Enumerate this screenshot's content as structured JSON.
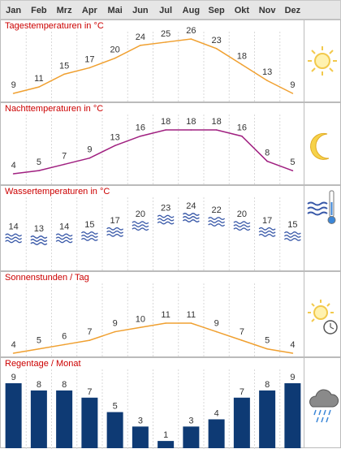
{
  "months": [
    "Jan",
    "Feb",
    "Mrz",
    "Apr",
    "Mai",
    "Jun",
    "Jul",
    "Aug",
    "Sep",
    "Okt",
    "Nov",
    "Dez"
  ],
  "icons": {
    "day": "sun-icon",
    "night": "moon-icon",
    "water": "water-thermometer-icon",
    "sun": "sun-clock-icon",
    "rain": "rain-cloud-icon"
  },
  "colors": {
    "title": "#cc0000",
    "day_line": "#f0a030",
    "night_line": "#a02080",
    "sun_line": "#f0a030",
    "rain_bar": "#0e3a74",
    "water_wave": "#3858a8"
  },
  "chart_data": [
    {
      "id": "day",
      "type": "line",
      "title": "Tagestemperaturen in °C",
      "categories": [
        "Jan",
        "Feb",
        "Mrz",
        "Apr",
        "Mai",
        "Jun",
        "Jul",
        "Aug",
        "Sep",
        "Okt",
        "Nov",
        "Dez"
      ],
      "values": [
        9,
        11,
        15,
        17,
        20,
        24,
        25,
        26,
        23,
        18,
        13,
        9
      ]
    },
    {
      "id": "night",
      "type": "line",
      "title": "Nachttemperaturen in °C",
      "categories": [
        "Jan",
        "Feb",
        "Mrz",
        "Apr",
        "Mai",
        "Jun",
        "Jul",
        "Aug",
        "Sep",
        "Okt",
        "Nov",
        "Dez"
      ],
      "values": [
        4,
        5,
        7,
        9,
        13,
        16,
        18,
        18,
        18,
        16,
        8,
        5
      ]
    },
    {
      "id": "water",
      "type": "table",
      "title": "Wassertemperaturen in °C",
      "categories": [
        "Jan",
        "Feb",
        "Mrz",
        "Apr",
        "Mai",
        "Jun",
        "Jul",
        "Aug",
        "Sep",
        "Okt",
        "Nov",
        "Dez"
      ],
      "values": [
        14,
        13,
        14,
        15,
        17,
        20,
        23,
        24,
        22,
        20,
        17,
        15
      ]
    },
    {
      "id": "sun",
      "type": "line",
      "title": "Sonnenstunden / Tag",
      "categories": [
        "Jan",
        "Feb",
        "Mrz",
        "Apr",
        "Mai",
        "Jun",
        "Jul",
        "Aug",
        "Sep",
        "Okt",
        "Nov",
        "Dez"
      ],
      "values": [
        4,
        5,
        6,
        7,
        9,
        10,
        11,
        11,
        9,
        7,
        5,
        4
      ]
    },
    {
      "id": "rain",
      "type": "bar",
      "title": "Regentage / Monat",
      "categories": [
        "Jan",
        "Feb",
        "Mrz",
        "Apr",
        "Mai",
        "Jun",
        "Jul",
        "Aug",
        "Sep",
        "Okt",
        "Nov",
        "Dez"
      ],
      "values": [
        9,
        8,
        8,
        7,
        5,
        3,
        1,
        3,
        4,
        7,
        8,
        9
      ]
    }
  ]
}
